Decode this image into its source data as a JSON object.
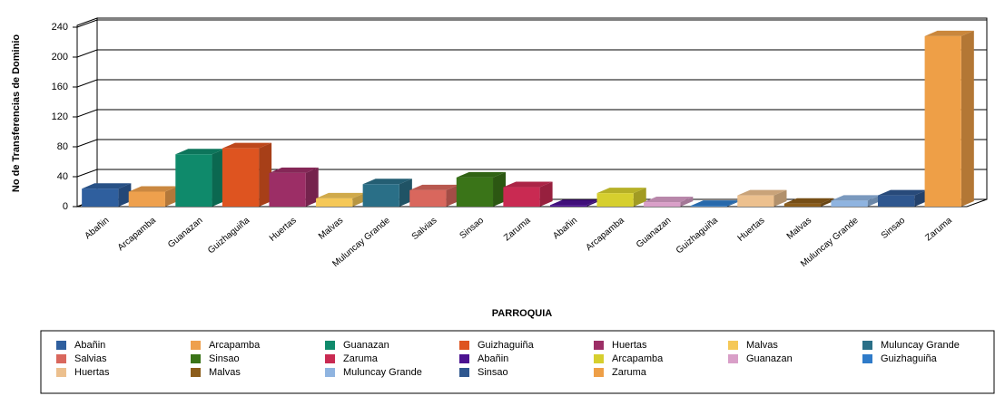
{
  "chart_data": {
    "type": "bar",
    "x_label": "PARROQUIA",
    "y_label": "No de Transferencias de Dominio",
    "categories": [
      "Abañin",
      "Arcapamba",
      "Guanazan",
      "Guizhaguiña",
      "Huertas",
      "Malvas",
      "Muluncay Grande",
      "Salvias",
      "Sinsao",
      "Zaruma",
      "Abañin",
      "Arcapamba",
      "Guanazan",
      "Guizhaguiña",
      "Huertas",
      "Malvas",
      "Muluncay Grande",
      "Sinsao",
      "Zaruma"
    ],
    "values": [
      24,
      20,
      70,
      78,
      45,
      11,
      30,
      22,
      39,
      26,
      2,
      18,
      6,
      1,
      15,
      4,
      8,
      15,
      228
    ],
    "colors": [
      "#2f5f9e",
      "#eea04d",
      "#0f8a6b",
      "#de5420",
      "#9c2e66",
      "#f5c858",
      "#2a6f87",
      "#d9675d",
      "#3a7418",
      "#c92a52",
      "#4b1290",
      "#d6cf2e",
      "#d99fc8",
      "#2f7bc9",
      "#ecc08e",
      "#8b5c1a",
      "#8fb4e0",
      "#2f578f",
      "#ee9f47"
    ],
    "ylim": [
      0,
      240
    ],
    "yticks": [
      0,
      40,
      80,
      120,
      160,
      200,
      240
    ],
    "grid": true
  }
}
